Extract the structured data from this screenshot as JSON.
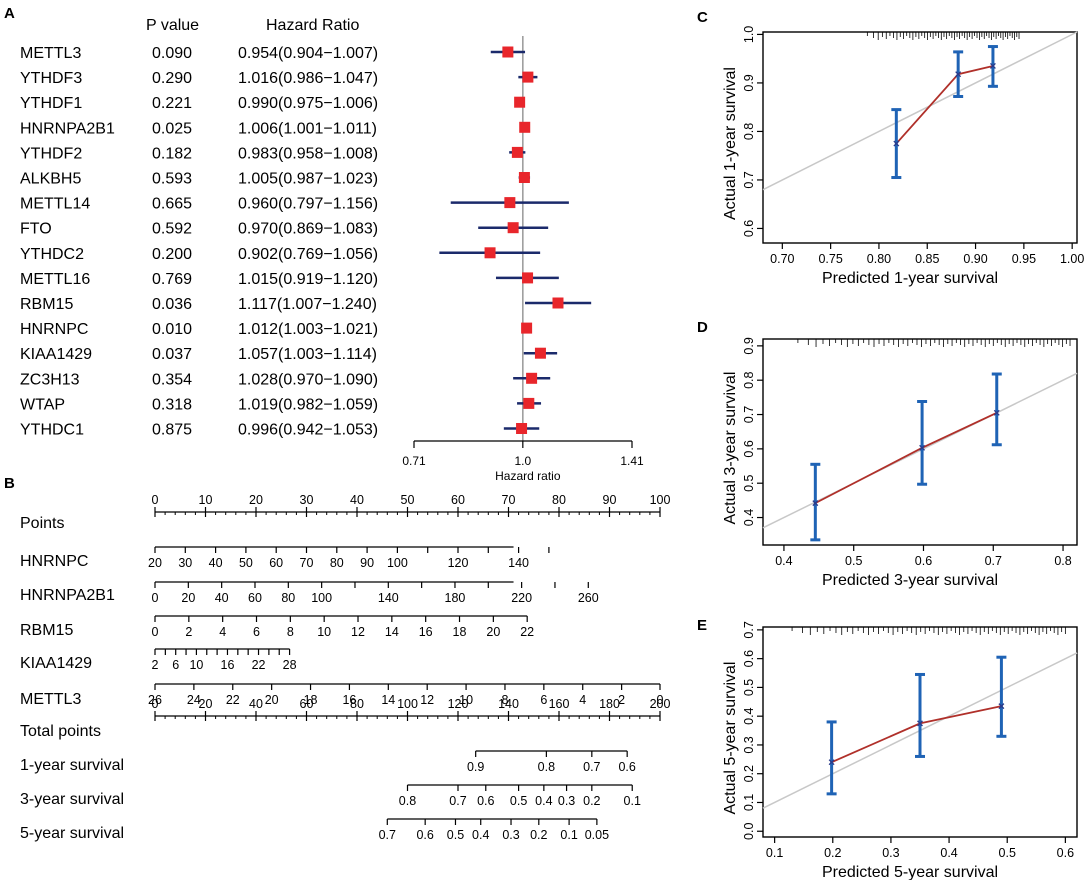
{
  "panels": {
    "a": "A",
    "b": "B",
    "c": "C",
    "d": "D",
    "e": "E"
  },
  "colors": {
    "marker": "#e8262b",
    "ci_line": "#1b2a6b",
    "ref_line": "#999999",
    "cal_line": "#b0302a",
    "cal_err": "#1f63b5",
    "diag": "#c8c8c8"
  },
  "chart_data": [
    {
      "type": "forest",
      "id": "A",
      "title": "",
      "col_pvalue": "P value",
      "col_hr": "Hazard Ratio",
      "xlabel": "Hazard ratio",
      "xscale": "log",
      "xlim": [
        0.71,
        1.41
      ],
      "xticks": [
        {
          "v": 0.71,
          "label": "0.71"
        },
        {
          "v": 1.0,
          "label": "1.0"
        },
        {
          "v": 1.41,
          "label": "1.41"
        }
      ],
      "rows": [
        {
          "gene": "METTL3",
          "p": "0.090",
          "hr_text": "0.954(0.904−1.007)",
          "hr": 0.954,
          "lo": 0.904,
          "hi": 1.007
        },
        {
          "gene": "YTHDF3",
          "p": "0.290",
          "hr_text": "1.016(0.986−1.047)",
          "hr": 1.016,
          "lo": 0.986,
          "hi": 1.047
        },
        {
          "gene": "YTHDF1",
          "p": "0.221",
          "hr_text": "0.990(0.975−1.006)",
          "hr": 0.99,
          "lo": 0.975,
          "hi": 1.006
        },
        {
          "gene": "HNRNPA2B1",
          "p": "0.025",
          "hr_text": "1.006(1.001−1.011)",
          "hr": 1.006,
          "lo": 1.001,
          "hi": 1.011
        },
        {
          "gene": "YTHDF2",
          "p": "0.182",
          "hr_text": "0.983(0.958−1.008)",
          "hr": 0.983,
          "lo": 0.958,
          "hi": 1.008
        },
        {
          "gene": "ALKBH5",
          "p": "0.593",
          "hr_text": "1.005(0.987−1.023)",
          "hr": 1.005,
          "lo": 0.987,
          "hi": 1.023
        },
        {
          "gene": "METTL14",
          "p": "0.665",
          "hr_text": "0.960(0.797−1.156)",
          "hr": 0.96,
          "lo": 0.797,
          "hi": 1.156
        },
        {
          "gene": "FTO",
          "p": "0.592",
          "hr_text": "0.970(0.869−1.083)",
          "hr": 0.97,
          "lo": 0.869,
          "hi": 1.083
        },
        {
          "gene": "YTHDC2",
          "p": "0.200",
          "hr_text": "0.902(0.769−1.056)",
          "hr": 0.902,
          "lo": 0.769,
          "hi": 1.056
        },
        {
          "gene": "METTL16",
          "p": "0.769",
          "hr_text": "1.015(0.919−1.120)",
          "hr": 1.015,
          "lo": 0.919,
          "hi": 1.12
        },
        {
          "gene": "RBM15",
          "p": "0.036",
          "hr_text": "1.117(1.007−1.240)",
          "hr": 1.117,
          "lo": 1.007,
          "hi": 1.24
        },
        {
          "gene": "HNRNPC",
          "p": "0.010",
          "hr_text": "1.012(1.003−1.021)",
          "hr": 1.012,
          "lo": 1.003,
          "hi": 1.021
        },
        {
          "gene": "KIAA1429",
          "p": "0.037",
          "hr_text": "1.057(1.003−1.114)",
          "hr": 1.057,
          "lo": 1.003,
          "hi": 1.114
        },
        {
          "gene": "ZC3H13",
          "p": "0.354",
          "hr_text": "1.028(0.970−1.090)",
          "hr": 1.028,
          "lo": 0.97,
          "hi": 1.09
        },
        {
          "gene": "WTAP",
          "p": "0.318",
          "hr_text": "1.019(0.982−1.059)",
          "hr": 1.019,
          "lo": 0.982,
          "hi": 1.059
        },
        {
          "gene": "YTHDC1",
          "p": "0.875",
          "hr_text": "0.996(0.942−1.053)",
          "hr": 0.996,
          "lo": 0.942,
          "hi": 1.053
        }
      ]
    },
    {
      "type": "nomogram",
      "id": "B",
      "points_range": [
        0,
        100
      ],
      "scales": [
        {
          "name": "Points",
          "kind": "points",
          "ticks": [
            "0",
            "10",
            "20",
            "30",
            "40",
            "50",
            "60",
            "70",
            "80",
            "90",
            "100"
          ],
          "pos": [
            0,
            10,
            20,
            30,
            40,
            50,
            60,
            70,
            80,
            90,
            100
          ],
          "minor": 5
        },
        {
          "name": "HNRNPC",
          "kind": "var",
          "ticks": [
            "20",
            "30",
            "40",
            "50",
            "60",
            "70",
            "80",
            "90",
            "100",
            "120",
            "140"
          ],
          "pos": [
            0,
            6,
            12,
            18,
            24,
            30,
            36,
            42,
            48,
            60,
            72
          ],
          "label_pos": [
            0,
            6,
            12,
            18,
            24,
            30,
            36,
            42,
            48,
            60,
            72
          ],
          "major_pos": [
            0,
            6,
            12,
            18,
            24,
            30,
            36,
            42,
            48,
            54,
            60,
            66,
            72,
            78
          ],
          "end": 71
        },
        {
          "name": "HNRNPA2B1",
          "kind": "var",
          "ticks": [
            "0",
            "20",
            "40",
            "60",
            "80",
            "100",
            "140",
            "180",
            "220",
            "260"
          ],
          "pos": [
            0,
            6.6,
            13.2,
            19.8,
            26.4,
            33,
            46.2,
            59.4,
            72.6,
            85.8
          ],
          "major_pos": [
            0,
            6.6,
            13.2,
            19.8,
            26.4,
            33,
            39.6,
            46.2,
            52.8,
            59.4,
            66,
            72.6,
            79.2,
            85.8
          ],
          "end": 71
        },
        {
          "name": "RBM15",
          "kind": "var",
          "ticks": [
            "0",
            "2",
            "4",
            "6",
            "8",
            "10",
            "12",
            "14",
            "16",
            "18",
            "20",
            "22"
          ],
          "pos": [
            0,
            6.7,
            13.4,
            20.1,
            26.8,
            33.5,
            40.2,
            46.9,
            53.6,
            60.3,
            67,
            73.7
          ],
          "major_pos": [
            0,
            6.7,
            13.4,
            20.1,
            26.8,
            33.5,
            40.2,
            46.9,
            53.6,
            60.3,
            67,
            73.7
          ],
          "end": 73.7
        },
        {
          "name": "KIAA1429",
          "kind": "var",
          "ticks": [
            "2",
            "6",
            "10",
            "16",
            "22",
            "28"
          ],
          "pos": [
            0,
            4.1,
            8.2,
            14.35,
            20.5,
            26.65
          ],
          "major_pos": [
            0,
            2.05,
            4.1,
            6.15,
            8.2,
            10.25,
            12.3,
            14.35,
            16.4,
            18.45,
            20.5,
            22.55,
            24.6,
            26.65
          ],
          "end": 26.65
        },
        {
          "name": "METTL3",
          "kind": "var",
          "ticks": [
            "26",
            "24",
            "22",
            "20",
            "18",
            "16",
            "14",
            "12",
            "10",
            "8",
            "6",
            "4",
            "2",
            "0"
          ],
          "pos": [
            0,
            7.7,
            15.4,
            23.1,
            30.8,
            38.5,
            46.2,
            53.9,
            61.6,
            69.3,
            77,
            84.7,
            92.4,
            100
          ],
          "major_pos": [
            0,
            7.7,
            15.4,
            23.1,
            30.8,
            38.5,
            46.2,
            53.9,
            61.6,
            69.3,
            77,
            84.7,
            92.4,
            100
          ],
          "end": 100
        },
        {
          "name": "Total points",
          "kind": "points",
          "ticks": [
            "0",
            "20",
            "40",
            "60",
            "80",
            "100",
            "120",
            "140",
            "160",
            "180",
            "200"
          ],
          "pos": [
            0,
            10,
            20,
            30,
            40,
            50,
            60,
            70,
            80,
            90,
            100
          ],
          "minor": 2
        },
        {
          "name": "1-year survival",
          "kind": "var",
          "ticks": [
            "0.9",
            "0.8",
            "0.7",
            "0.6"
          ],
          "pos": [
            63.5,
            77.5,
            86.5,
            93.5
          ],
          "major_pos": [
            63.5,
            77.5,
            86.5,
            93.5
          ],
          "start": 63.5,
          "end": 93.5
        },
        {
          "name": "3-year survival",
          "kind": "var",
          "ticks": [
            "0.8",
            "0.7",
            "0.6",
            "0.5",
            "0.4",
            "0.3",
            "0.2",
            "0.1"
          ],
          "pos": [
            50,
            60,
            65.5,
            72,
            77,
            81.5,
            86.5,
            94.5
          ],
          "major_pos": [
            50,
            60,
            65.5,
            72,
            77,
            81.5,
            86.5,
            94.5
          ],
          "start": 50,
          "end": 94.5
        },
        {
          "name": "5-year survival",
          "kind": "var",
          "ticks": [
            "0.7",
            "0.6",
            "0.5",
            "0.4",
            "0.3",
            "0.2",
            "0.1",
            "0.05"
          ],
          "pos": [
            46,
            53.5,
            59.5,
            64.5,
            70.5,
            76,
            82,
            87.5
          ],
          "major_pos": [
            46,
            53.5,
            59.5,
            64.5,
            70.5,
            76,
            82,
            87.5
          ],
          "start": 46,
          "end": 87.5
        }
      ]
    },
    {
      "type": "calibration",
      "id": "C",
      "xlabel": "Predicted 1-year survival",
      "ylabel": "Actual 1-year survival",
      "xlim": [
        0.68,
        1.005
      ],
      "ylim": [
        0.57,
        1.005
      ],
      "xticks": [
        "0.70",
        "0.75",
        "0.80",
        "0.85",
        "0.90",
        "0.95",
        "1.00"
      ],
      "xtick_vals": [
        0.7,
        0.75,
        0.8,
        0.85,
        0.9,
        0.95,
        1.0
      ],
      "yticks": [
        "0.6",
        "0.7",
        "0.8",
        "0.9",
        "1.0"
      ],
      "ytick_vals": [
        0.6,
        0.7,
        0.8,
        0.9,
        1.0
      ],
      "points": [
        {
          "x": 0.818,
          "y": 0.775,
          "lo": 0.705,
          "hi": 0.845
        },
        {
          "x": 0.882,
          "y": 0.918,
          "lo": 0.872,
          "hi": 0.964
        },
        {
          "x": 0.918,
          "y": 0.935,
          "lo": 0.893,
          "hi": 0.975
        }
      ],
      "rug": {
        "from": 0.788,
        "to": 0.945,
        "count": 55
      }
    },
    {
      "type": "calibration",
      "id": "D",
      "xlabel": "Predicted 3-year survival",
      "ylabel": "Actual 3-year survival",
      "xlim": [
        0.37,
        0.82
      ],
      "ylim": [
        0.32,
        0.92
      ],
      "xticks": [
        "0.4",
        "0.5",
        "0.6",
        "0.7",
        "0.8"
      ],
      "xtick_vals": [
        0.4,
        0.5,
        0.6,
        0.7,
        0.8
      ],
      "yticks": [
        "0.4",
        "0.5",
        "0.6",
        "0.7",
        "0.8",
        "0.9"
      ],
      "ytick_vals": [
        0.4,
        0.5,
        0.6,
        0.7,
        0.8,
        0.9
      ],
      "points": [
        {
          "x": 0.445,
          "y": 0.442,
          "lo": 0.335,
          "hi": 0.555
        },
        {
          "x": 0.598,
          "y": 0.603,
          "lo": 0.497,
          "hi": 0.738
        },
        {
          "x": 0.705,
          "y": 0.705,
          "lo": 0.612,
          "hi": 0.818
        }
      ],
      "rug": {
        "from": 0.42,
        "to": 0.81,
        "count": 60
      }
    },
    {
      "type": "calibration",
      "id": "E",
      "xlabel": "Predicted 5-year survival",
      "ylabel": "Actual 5-year survival",
      "xlim": [
        0.08,
        0.62
      ],
      "ylim": [
        -0.02,
        0.71
      ],
      "xticks": [
        "0.1",
        "0.2",
        "0.3",
        "0.4",
        "0.5",
        "0.6"
      ],
      "xtick_vals": [
        0.1,
        0.2,
        0.3,
        0.4,
        0.5,
        0.6
      ],
      "yticks": [
        "0.0",
        "0.1",
        "0.2",
        "0.3",
        "0.4",
        "0.5",
        "0.6",
        "0.7"
      ],
      "ytick_vals": [
        0.0,
        0.1,
        0.2,
        0.3,
        0.4,
        0.5,
        0.6,
        0.7
      ],
      "points": [
        {
          "x": 0.198,
          "y": 0.24,
          "lo": 0.13,
          "hi": 0.38
        },
        {
          "x": 0.35,
          "y": 0.375,
          "lo": 0.26,
          "hi": 0.545
        },
        {
          "x": 0.49,
          "y": 0.435,
          "lo": 0.33,
          "hi": 0.605
        }
      ],
      "rug": {
        "from": 0.13,
        "to": 0.6,
        "count": 60
      }
    }
  ]
}
